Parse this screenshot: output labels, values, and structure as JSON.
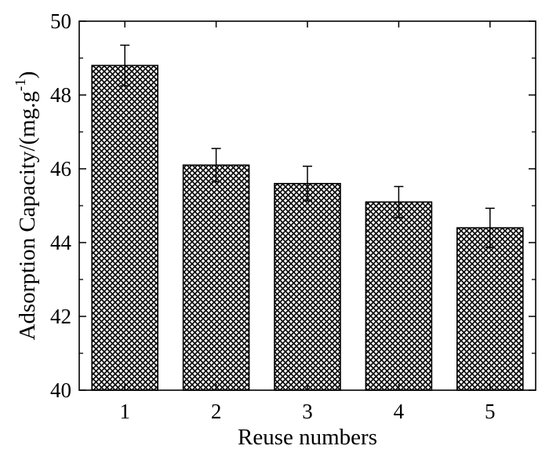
{
  "chart_data": {
    "type": "bar",
    "title": "",
    "xlabel": "Reuse numbers",
    "ylabel": {
      "main": "Adsorption Capacity/(mg.g",
      "superscript": "-1",
      "close": ")"
    },
    "categories": [
      "1",
      "2",
      "3",
      "4",
      "5"
    ],
    "values": [
      48.8,
      46.1,
      45.6,
      45.1,
      44.4
    ],
    "errors": [
      0.55,
      0.45,
      0.47,
      0.42,
      0.53
    ],
    "ylim": [
      40,
      50
    ],
    "yticks": [
      "40",
      "42",
      "44",
      "46",
      "48",
      "50"
    ],
    "grid": false,
    "bar_fill": "crosshatch",
    "bar_edge_color": "#000000",
    "hatch_color": "#000000",
    "background_color": "#ffffff"
  }
}
